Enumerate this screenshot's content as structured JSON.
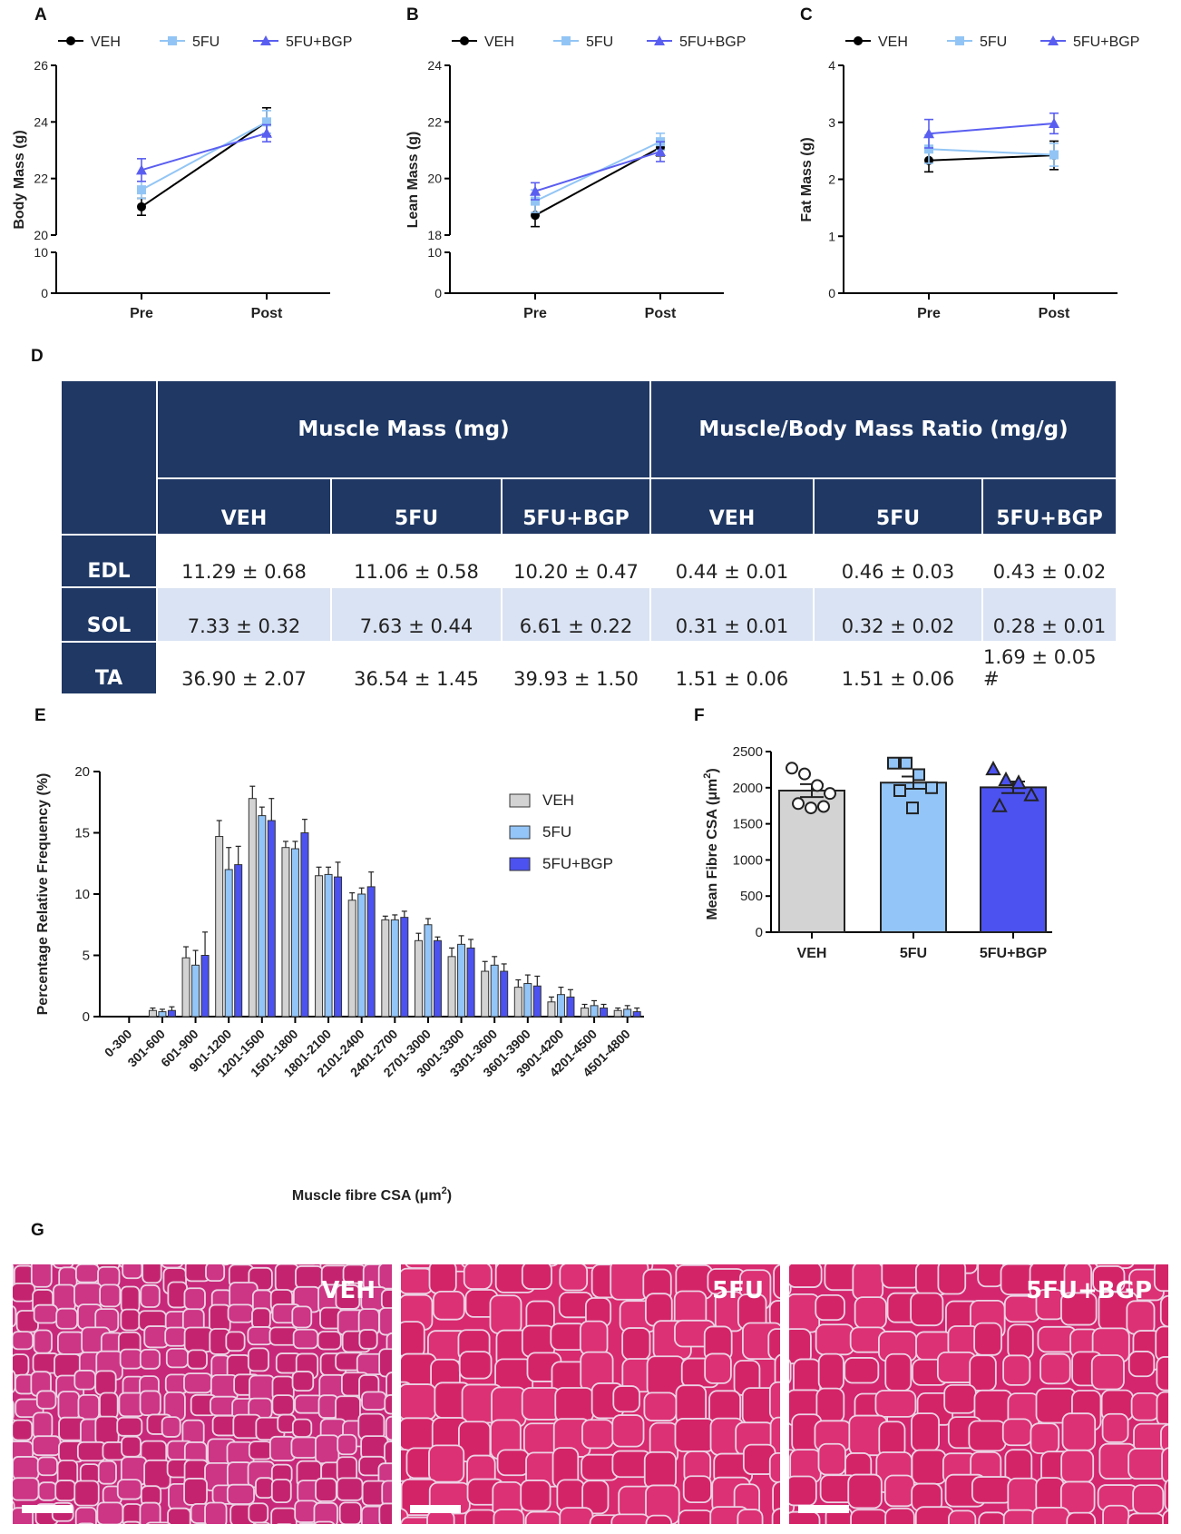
{
  "panel_letters": {
    "A": "A",
    "B": "B",
    "C": "C",
    "D": "D",
    "E": "E",
    "F": "F",
    "G": "G"
  },
  "legend_groups": [
    "VEH",
    "5FU",
    "5FU+BGP"
  ],
  "colors": {
    "veh": "#000000",
    "fu": "#92c5f5",
    "bgp": "#5a5ef0",
    "table_header": "#1f3864",
    "table_shade": "#dae3f3",
    "bar_veh": "#d3d3d3",
    "bar_fu": "#93c5f8",
    "bar_bgp": "#4c52f0",
    "stain": "#d5246e"
  },
  "chart_data": [
    {
      "id": "A",
      "type": "line",
      "ylabel": "Body Mass (g)",
      "categories": [
        "Pre",
        "Post"
      ],
      "y_upper_range": [
        20,
        26
      ],
      "y_upper_ticks": [
        "20",
        "22",
        "24",
        "26"
      ],
      "y_lower_range": [
        0,
        10
      ],
      "y_lower_ticks": [
        "0",
        "10"
      ],
      "series": [
        {
          "name": "VEH",
          "values": [
            21.0,
            24.0
          ],
          "errors": [
            0.3,
            0.5
          ]
        },
        {
          "name": "5FU",
          "values": [
            21.6,
            24.0
          ],
          "errors": [
            0.3,
            0.4
          ]
        },
        {
          "name": "5FU+BGP",
          "values": [
            22.3,
            23.6
          ],
          "errors": [
            0.4,
            0.3
          ]
        }
      ]
    },
    {
      "id": "B",
      "type": "line",
      "ylabel": "Lean Mass (g)",
      "categories": [
        "Pre",
        "Post"
      ],
      "y_upper_range": [
        18,
        24
      ],
      "y_upper_ticks": [
        "18",
        "20",
        "22",
        "24"
      ],
      "y_lower_range": [
        0,
        10
      ],
      "y_lower_ticks": [
        "0",
        "10"
      ],
      "series": [
        {
          "name": "VEH",
          "values": [
            18.7,
            21.1
          ],
          "errors": [
            0.4,
            0.3
          ]
        },
        {
          "name": "5FU",
          "values": [
            19.2,
            21.3
          ],
          "errors": [
            0.4,
            0.3
          ]
        },
        {
          "name": "5FU+BGP",
          "values": [
            19.55,
            20.95
          ],
          "errors": [
            0.3,
            0.35
          ]
        }
      ]
    },
    {
      "id": "C",
      "type": "line",
      "ylabel": "Fat Mass (g)",
      "categories": [
        "Pre",
        "Post"
      ],
      "y_range": [
        0,
        4
      ],
      "y_ticks": [
        "0",
        "1",
        "2",
        "3",
        "4"
      ],
      "series": [
        {
          "name": "VEH",
          "values": [
            2.33,
            2.42
          ],
          "errors": [
            0.2,
            0.25
          ]
        },
        {
          "name": "5FU",
          "values": [
            2.53,
            2.43
          ],
          "errors": [
            0.25,
            0.2
          ]
        },
        {
          "name": "5FU+BGP",
          "values": [
            2.8,
            2.98
          ],
          "errors": [
            0.25,
            0.18
          ]
        }
      ]
    },
    {
      "id": "D",
      "type": "table",
      "group_headers": [
        "Muscle Mass (mg)",
        "Muscle/Body Mass Ratio (mg/g)"
      ],
      "sub_headers": [
        "VEH",
        "5FU",
        "5FU+BGP",
        "VEH",
        "5FU",
        "5FU+BGP"
      ],
      "rows": [
        {
          "label": "EDL",
          "cells": [
            "11.29 ± 0.68",
            "11.06 ± 0.58",
            "10.20 ± 0.47",
            "0.44 ± 0.01",
            "0.46 ± 0.03",
            "0.43 ± 0.02"
          ]
        },
        {
          "label": "SOL",
          "cells": [
            "7.33 ± 0.32",
            "7.63 ± 0.44",
            "6.61 ± 0.22",
            "0.31 ± 0.01",
            "0.32 ± 0.02",
            "0.28 ± 0.01"
          ]
        },
        {
          "label": "TA",
          "cells": [
            "36.90 ± 2.07",
            "36.54 ± 1.45",
            "39.93 ± 1.50",
            "1.51 ± 0.06",
            "1.51 ± 0.06",
            "1.69 ± 0.05 #"
          ]
        }
      ]
    },
    {
      "id": "E",
      "type": "bar",
      "ylabel": "Percentage Relative Frequency (%)",
      "xlabel": "Muscle fibre CSA (μm",
      "xlabel_sup": "2",
      "xlabel_close": ")",
      "ylim": [
        0,
        20
      ],
      "y_ticks": [
        "0",
        "5",
        "10",
        "15",
        "20"
      ],
      "categories": [
        "0-300",
        "301-600",
        "601-900",
        "901-1200",
        "1201-1500",
        "1501-1800",
        "1801-2100",
        "2101-2400",
        "2401-2700",
        "2701-3000",
        "3001-3300",
        "3301-3600",
        "3601-3900",
        "3901-4200",
        "4201-4500",
        "4501-4800"
      ],
      "series": [
        {
          "name": "VEH",
          "values": [
            0,
            0.5,
            4.8,
            14.7,
            17.8,
            13.8,
            11.5,
            9.5,
            7.9,
            6.2,
            4.9,
            3.7,
            2.4,
            1.2,
            0.7,
            0.5
          ],
          "errors": [
            0,
            0.2,
            0.9,
            1.3,
            1.0,
            0.5,
            0.7,
            0.6,
            0.3,
            0.6,
            0.7,
            0.8,
            0.6,
            0.4,
            0.3,
            0.2
          ]
        },
        {
          "name": "5FU",
          "values": [
            0,
            0.4,
            4.2,
            12.0,
            16.4,
            13.7,
            11.6,
            10.0,
            7.9,
            7.5,
            5.9,
            4.2,
            2.7,
            1.8,
            0.9,
            0.6
          ],
          "errors": [
            0,
            0.2,
            1.2,
            1.8,
            0.7,
            0.6,
            0.6,
            0.5,
            0.4,
            0.5,
            0.7,
            0.7,
            0.7,
            0.6,
            0.4,
            0.3
          ]
        },
        {
          "name": "5FU+BGP",
          "values": [
            0,
            0.5,
            5.0,
            12.4,
            16.0,
            15.0,
            11.4,
            10.6,
            8.1,
            6.2,
            5.6,
            3.7,
            2.5,
            1.6,
            0.7,
            0.4
          ],
          "errors": [
            0,
            0.3,
            1.9,
            1.5,
            1.8,
            1.1,
            1.2,
            1.2,
            0.5,
            0.3,
            0.7,
            0.6,
            0.8,
            0.6,
            0.3,
            0.3
          ]
        }
      ]
    },
    {
      "id": "F",
      "type": "bar",
      "ylabel": "Mean Fibre CSA (μm",
      "ylabel_sup": "2",
      "ylabel_close": ")",
      "ylim": [
        0,
        2500
      ],
      "y_ticks": [
        "0",
        "500",
        "1000",
        "1500",
        "2000",
        "2500"
      ],
      "categories": [
        "VEH",
        "5FU",
        "5FU+BGP"
      ],
      "values": [
        1960,
        2070,
        2005
      ],
      "errors": [
        90,
        85,
        80
      ],
      "points": [
        [
          2270,
          2190,
          2030,
          1920,
          1780,
          1720,
          1740
        ],
        [
          2340,
          2340,
          2180,
          2000,
          1960,
          1720
        ],
        [
          2260,
          2110,
          2070,
          1900,
          1750
        ]
      ]
    }
  ],
  "micrographs": [
    {
      "label": "VEH"
    },
    {
      "label": "5FU"
    },
    {
      "label": "5FU+BGP"
    }
  ]
}
